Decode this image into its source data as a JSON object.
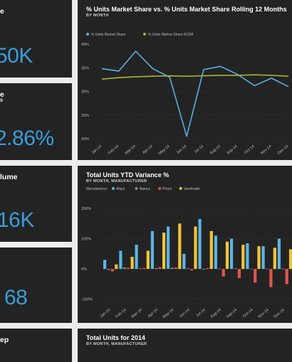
{
  "kpi_tiles": [
    {
      "title": "e",
      "subtitle": "",
      "value": "50K"
    },
    {
      "title": "e",
      "subtitle": "S",
      "value": "2.86%"
    },
    {
      "title": "lume",
      "subtitle": "",
      "value": "16K"
    },
    {
      "title": "",
      "subtitle": "",
      "value": "68"
    },
    {
      "title": "ep",
      "subtitle": "",
      "value": ""
    }
  ],
  "colors": {
    "tile_bg": "#232323",
    "page_bg": "#ececec",
    "accent_blue": "#3a9dd8",
    "line_blue": "#5aaee0",
    "line_olive": "#a6b43a",
    "bar_blue": "#5ab4e6",
    "bar_yellow": "#f2c438",
    "bar_red": "#e2544f",
    "bar_gray": "#8a8a8a"
  },
  "chart_data": [
    {
      "type": "line",
      "title": "% Units Market Share vs. % Units Market Share Rolling 12 Months",
      "subtitle": "BY MONTH",
      "legend": [
        "% Units Market Share",
        "% Units Market Share R12M"
      ],
      "legend_position": "top-left",
      "x": [
        "Jan-14",
        "Feb-14",
        "Mar-14",
        "Apr-14",
        "May-14",
        "Jun-14",
        "Jul-14",
        "Aug-14",
        "Sep-14",
        "Oct-14",
        "Nov-14",
        "Dec-14"
      ],
      "y_ticks": [
        "40%",
        "35%",
        "30%",
        "25%",
        "20%"
      ],
      "ylim": [
        20,
        40
      ],
      "grid": true,
      "series": [
        {
          "name": "% Units Market Share",
          "color": "#5aaee0",
          "values": [
            34.8,
            34.3,
            38.5,
            34.8,
            33.0,
            20.5,
            34.6,
            35.3,
            33.6,
            31.2,
            32.8,
            31.0
          ]
        },
        {
          "name": "% Units Market Share R12M",
          "color": "#a6b43a",
          "values": [
            32.6,
            32.9,
            33.1,
            33.2,
            33.3,
            33.2,
            33.3,
            33.4,
            33.4,
            33.5,
            33.4,
            33.2
          ]
        }
      ]
    },
    {
      "type": "bar",
      "title": "Total Units YTD Variance %",
      "subtitle": "BY MONTH, MANUFACTURER",
      "legend_label": "Manufacturer",
      "legend": [
        "Aliqui",
        "Natura",
        "Pirum",
        "VanArsdel"
      ],
      "legend_position": "top-left",
      "categories": [
        "Jan-14",
        "Feb-14",
        "Mar-14",
        "Apr-14",
        "May-14",
        "Jun-14",
        "Jul-14",
        "Aug-14",
        "Sep-14",
        "Oct-14",
        "Nov-14",
        "Dec-14"
      ],
      "y_ticks": [
        "200%",
        "100%",
        "0%",
        "-100%"
      ],
      "ylim": [
        -110,
        200
      ],
      "grid": true,
      "series": [
        {
          "name": "Aliqui",
          "color": "#5ab4e6",
          "values": [
            30,
            60,
            80,
            125,
            140,
            50,
            165,
            110,
            100,
            85,
            75,
            100
          ]
        },
        {
          "name": "Natura",
          "color": "#8a8a8a",
          "values": [
            -3,
            5,
            2,
            3,
            4,
            2,
            -2,
            1,
            2,
            1,
            1,
            1
          ]
        },
        {
          "name": "Pirum",
          "color": "#e2544f",
          "values": [
            -8,
            4,
            3,
            6,
            5,
            -5,
            3,
            -25,
            -30,
            -45,
            -60,
            -50
          ]
        },
        {
          "name": "VanArsdel",
          "color": "#f2c438",
          "values": [
            15,
            40,
            60,
            120,
            150,
            140,
            125,
            90,
            80,
            75,
            70,
            65
          ]
        }
      ]
    }
  ],
  "bottom_chart": {
    "title": "Total Units for 2014",
    "subtitle": "BY MONTH, MANUFACTURER"
  }
}
